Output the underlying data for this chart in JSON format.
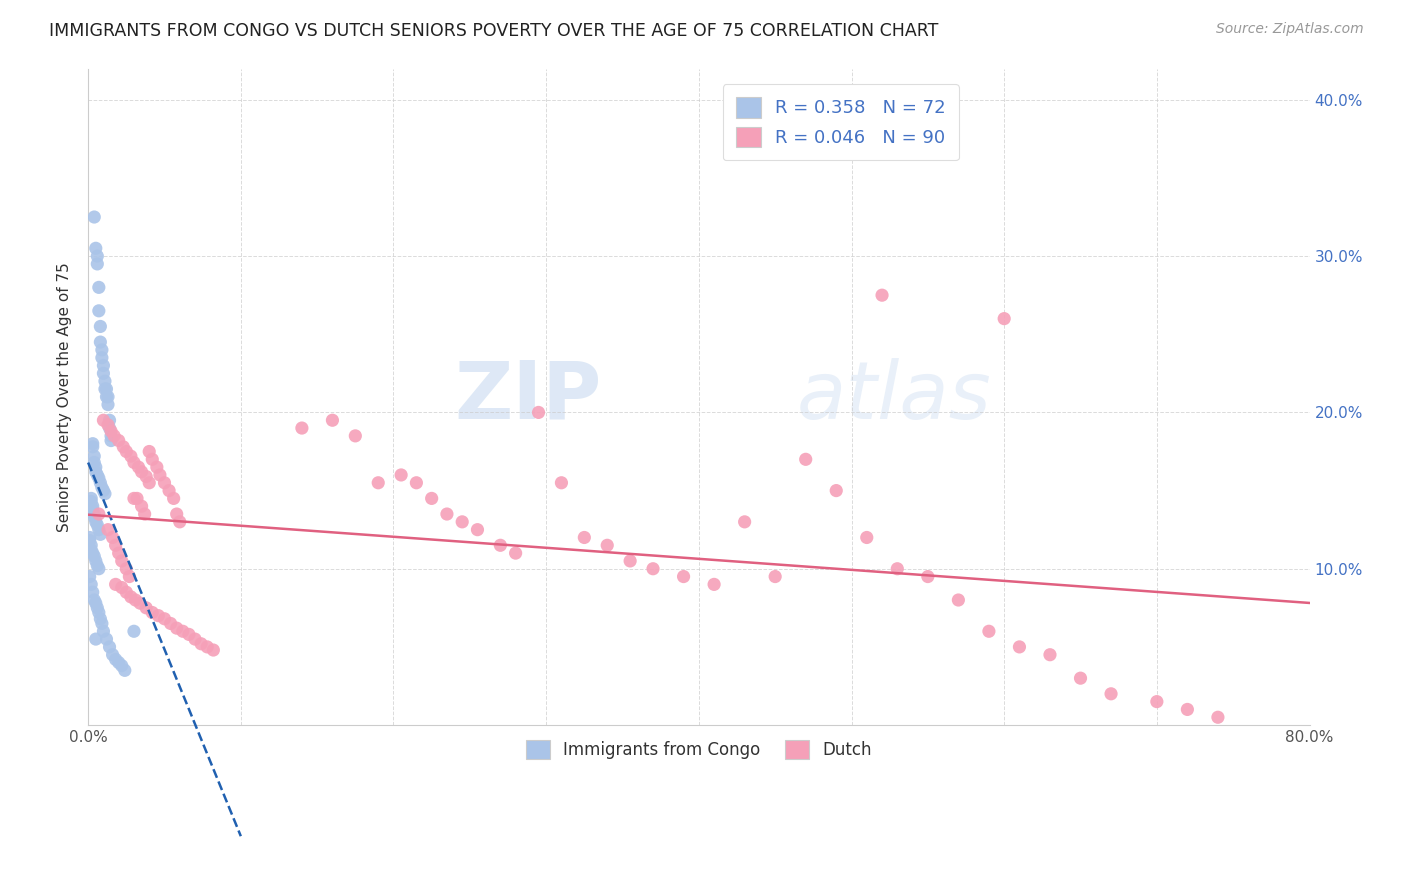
{
  "title": "IMMIGRANTS FROM CONGO VS DUTCH SENIORS POVERTY OVER THE AGE OF 75 CORRELATION CHART",
  "source": "Source: ZipAtlas.com",
  "ylabel": "Seniors Poverty Over the Age of 75",
  "xlabel": "",
  "xlim": [
    0.0,
    0.8
  ],
  "ylim": [
    0.0,
    0.42
  ],
  "x_ticks": [
    0.0,
    0.1,
    0.2,
    0.3,
    0.4,
    0.5,
    0.6,
    0.7,
    0.8
  ],
  "y_ticks": [
    0.0,
    0.1,
    0.2,
    0.3,
    0.4
  ],
  "x_tick_labels": [
    "0.0%",
    "",
    "",
    "",
    "",
    "",
    "",
    "",
    "80.0%"
  ],
  "y_tick_labels_right": [
    "",
    "10.0%",
    "20.0%",
    "30.0%",
    "40.0%"
  ],
  "congo_R": 0.358,
  "congo_N": 72,
  "dutch_R": 0.046,
  "dutch_N": 90,
  "congo_color": "#aac4e8",
  "congo_line_color": "#2060b0",
  "dutch_color": "#f5a0b8",
  "dutch_line_color": "#e06080",
  "watermark_color": "#c8daf0",
  "background_color": "#ffffff",
  "grid_color": "#cccccc",
  "congo_x": [
    0.004,
    0.005,
    0.006,
    0.006,
    0.007,
    0.007,
    0.008,
    0.008,
    0.009,
    0.009,
    0.01,
    0.01,
    0.011,
    0.011,
    0.012,
    0.012,
    0.013,
    0.013,
    0.014,
    0.014,
    0.015,
    0.015,
    0.003,
    0.003,
    0.004,
    0.004,
    0.005,
    0.005,
    0.006,
    0.007,
    0.008,
    0.009,
    0.01,
    0.011,
    0.002,
    0.002,
    0.003,
    0.003,
    0.004,
    0.004,
    0.005,
    0.006,
    0.007,
    0.008,
    0.001,
    0.001,
    0.002,
    0.002,
    0.003,
    0.004,
    0.005,
    0.006,
    0.007,
    0.001,
    0.002,
    0.003,
    0.004,
    0.005,
    0.006,
    0.007,
    0.008,
    0.009,
    0.01,
    0.012,
    0.014,
    0.016,
    0.018,
    0.02,
    0.022,
    0.024,
    0.005,
    0.03
  ],
  "congo_y": [
    0.325,
    0.305,
    0.3,
    0.295,
    0.28,
    0.265,
    0.255,
    0.245,
    0.24,
    0.235,
    0.23,
    0.225,
    0.22,
    0.215,
    0.215,
    0.21,
    0.21,
    0.205,
    0.195,
    0.19,
    0.185,
    0.182,
    0.18,
    0.178,
    0.172,
    0.168,
    0.165,
    0.162,
    0.16,
    0.158,
    0.155,
    0.152,
    0.15,
    0.148,
    0.145,
    0.143,
    0.14,
    0.138,
    0.135,
    0.133,
    0.13,
    0.128,
    0.125,
    0.122,
    0.12,
    0.118,
    0.115,
    0.112,
    0.11,
    0.108,
    0.105,
    0.102,
    0.1,
    0.095,
    0.09,
    0.085,
    0.08,
    0.078,
    0.075,
    0.072,
    0.068,
    0.065,
    0.06,
    0.055,
    0.05,
    0.045,
    0.042,
    0.04,
    0.038,
    0.035,
    0.055,
    0.06
  ],
  "dutch_x": [
    0.007,
    0.013,
    0.016,
    0.018,
    0.02,
    0.022,
    0.025,
    0.027,
    0.03,
    0.032,
    0.035,
    0.037,
    0.04,
    0.042,
    0.045,
    0.047,
    0.05,
    0.053,
    0.056,
    0.058,
    0.06,
    0.01,
    0.013,
    0.015,
    0.017,
    0.02,
    0.023,
    0.025,
    0.028,
    0.03,
    0.033,
    0.035,
    0.038,
    0.04,
    0.018,
    0.022,
    0.025,
    0.028,
    0.031,
    0.034,
    0.038,
    0.042,
    0.046,
    0.05,
    0.054,
    0.058,
    0.062,
    0.066,
    0.07,
    0.074,
    0.078,
    0.082,
    0.14,
    0.16,
    0.175,
    0.19,
    0.205,
    0.215,
    0.225,
    0.235,
    0.245,
    0.255,
    0.27,
    0.28,
    0.295,
    0.31,
    0.325,
    0.34,
    0.355,
    0.37,
    0.39,
    0.41,
    0.43,
    0.45,
    0.47,
    0.49,
    0.51,
    0.53,
    0.55,
    0.57,
    0.59,
    0.61,
    0.63,
    0.65,
    0.67,
    0.7,
    0.72,
    0.74,
    0.52,
    0.6
  ],
  "dutch_y": [
    0.135,
    0.125,
    0.12,
    0.115,
    0.11,
    0.105,
    0.1,
    0.095,
    0.145,
    0.145,
    0.14,
    0.135,
    0.175,
    0.17,
    0.165,
    0.16,
    0.155,
    0.15,
    0.145,
    0.135,
    0.13,
    0.195,
    0.192,
    0.188,
    0.185,
    0.182,
    0.178,
    0.175,
    0.172,
    0.168,
    0.165,
    0.162,
    0.159,
    0.155,
    0.09,
    0.088,
    0.085,
    0.082,
    0.08,
    0.078,
    0.075,
    0.072,
    0.07,
    0.068,
    0.065,
    0.062,
    0.06,
    0.058,
    0.055,
    0.052,
    0.05,
    0.048,
    0.19,
    0.195,
    0.185,
    0.155,
    0.16,
    0.155,
    0.145,
    0.135,
    0.13,
    0.125,
    0.115,
    0.11,
    0.2,
    0.155,
    0.12,
    0.115,
    0.105,
    0.1,
    0.095,
    0.09,
    0.13,
    0.095,
    0.17,
    0.15,
    0.12,
    0.1,
    0.095,
    0.08,
    0.06,
    0.05,
    0.045,
    0.03,
    0.02,
    0.015,
    0.01,
    0.005,
    0.275,
    0.26
  ]
}
